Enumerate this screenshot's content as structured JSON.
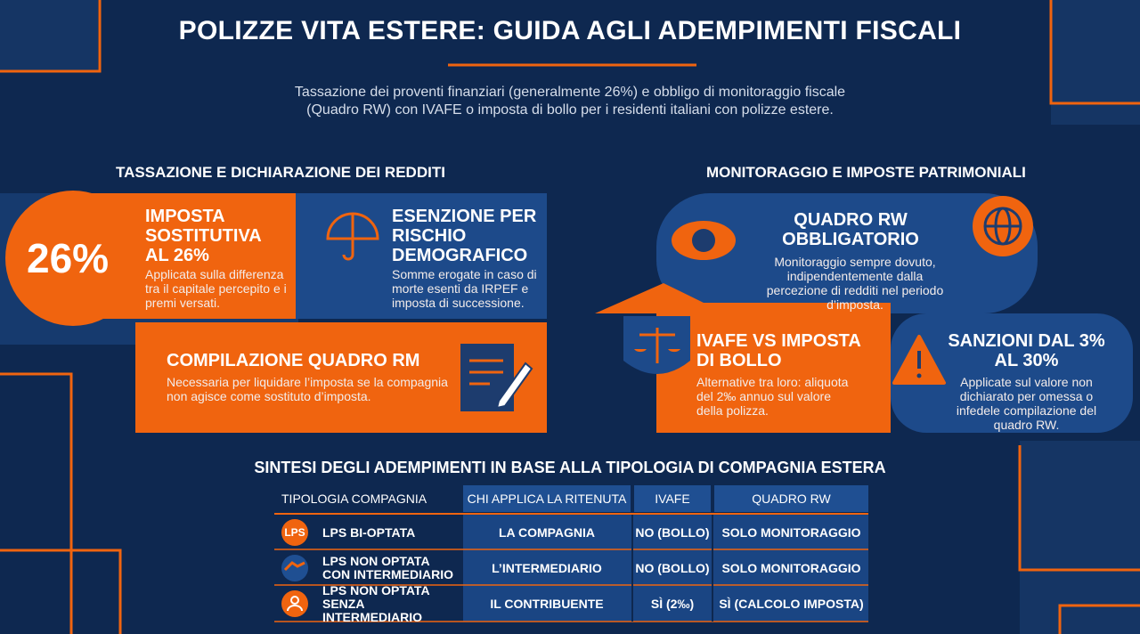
{
  "header": {
    "title": "POLIZZE VITA ESTERE: GUIDA AGLI ADEMPIMENTI FISCALI",
    "subtitle": [
      "Tassazione dei proventi finanziari (generalmente 26%) e obbligo di monitoraggio fiscale",
      "(Quadro RW) con IVAFE o imposta di bollo per i residenti italiani con polizze estere."
    ]
  },
  "left_section": {
    "heading": "TASSAZIONE E DICHIARAZIONE DEI REDDITI",
    "cards": [
      {
        "highlight": "26%",
        "title": "IMPOSTA SOSTITUTIVA AL 26%",
        "text": "Applicata sulla differenza tra il capitale percepito e i premi versati."
      },
      {
        "title": "ESENZIONE PER RISCHIO DEMOGRAFICO",
        "text": "Somme erogate in caso di morte esenti da IRPEF e imposta di successione."
      },
      {
        "title": "COMPILAZIONE QUADRO RM",
        "text": "Necessaria per liquidare l’imposta se la compagnia non agisce come sostituto d’imposta."
      }
    ]
  },
  "right_section": {
    "heading": "MONITORAGGIO E IMPOSTE PATRIMONIALI",
    "cards": [
      {
        "title": "QUADRO RW OBBLIGATORIO",
        "text": "Monitoraggio sempre dovuto, indipendentemente dalla percezione di redditi nel periodo d’imposta."
      },
      {
        "title": "IVAFE VS IMPOSTA DI BOLLO",
        "text": "Alternative tra loro: aliquota del 2‰ annuo sul valore della polizza."
      },
      {
        "title": "SANZIONI DAL 3% AL 30%",
        "text": "Applicate sul valore non dichiarato per omessa o infedele compilazione del quadro RW."
      }
    ]
  },
  "table": {
    "title": "SINTESI DEGLI ADEMPIMENTI IN BASE ALLA TIPOLOGIA DI COMPAGNIA ESTERA",
    "headers": [
      "TIPOLOGIA COMPAGNIA",
      "CHI APPLICA LA RITENUTA",
      "IVAFE",
      "QUADRO RW"
    ],
    "row_badge": "LPS",
    "rows": [
      [
        "LPS BI-OPTATA",
        "LA COMPAGNIA",
        "NO (BOLLO)",
        "SOLO MONITORAGGIO"
      ],
      [
        "LPS NON OPTATA CON INTERMEDIARIO",
        "L’INTERMEDIARIO",
        "NO (BOLLO)",
        "SOLO MONITORAGGIO"
      ],
      [
        "LPS NON OPTATA SENZA INTERMEDIARIO",
        "IL CONTRIBUENTE",
        "SÌ (2‰)",
        "SÌ (CALCOLO IMPOSTA)"
      ]
    ]
  }
}
